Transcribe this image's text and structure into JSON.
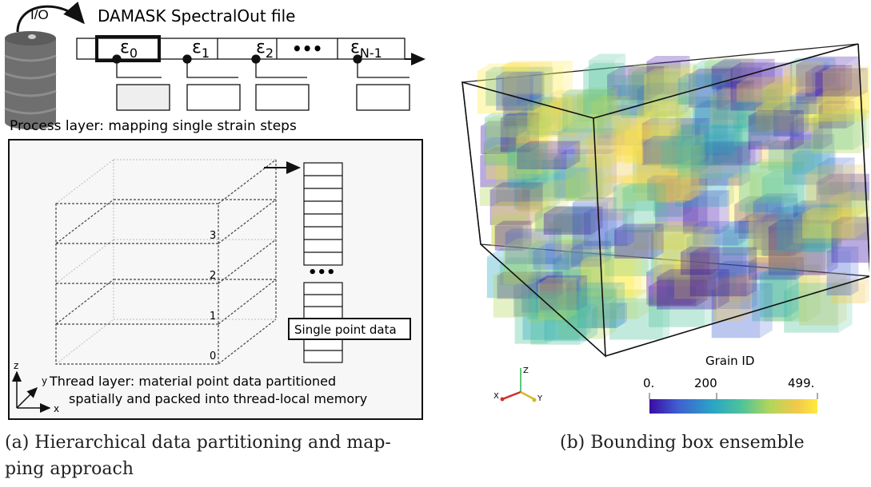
{
  "left_panel": {
    "io_label": "I/O",
    "file_title": "DAMASK SpectralOut file",
    "strain_cells": [
      {
        "base": "ε",
        "sub": "0",
        "highlighted": true
      },
      {
        "base": "ε",
        "sub": "1",
        "highlighted": false
      },
      {
        "base": "ε",
        "sub": "2",
        "highlighted": false
      },
      {
        "base": "•••",
        "sub": "",
        "highlighted": false
      },
      {
        "base": "ε",
        "sub": "N-1",
        "highlighted": false
      }
    ],
    "process_layer_label": "Process layer: mapping single strain steps",
    "layer_numbers": [
      "3",
      "2",
      "1",
      "0"
    ],
    "stack_ellipsis": "•••",
    "single_point_label": "Single point data",
    "thread_layer_line1": "Thread layer: material point data partitioned",
    "thread_layer_line2": "spatially and packed into thread-local memory",
    "axes": {
      "z": "z",
      "y": "y",
      "x": "x"
    },
    "caption_line1": "(a) Hierarchical data partitioning and map-",
    "caption_line2": "ping approach"
  },
  "right_panel": {
    "colorbar": {
      "title": "Grain ID",
      "tick_labels": [
        "0.",
        "200",
        "499."
      ],
      "colors": [
        "#3a0ca3",
        "#3f5fd0",
        "#2aa6c4",
        "#4fc39a",
        "#b3d65a",
        "#f2c94c",
        "#ffea3c"
      ]
    },
    "orientation_axes": {
      "z": "Z",
      "x": "X",
      "y": "Y"
    },
    "caption": "(b) Bounding box ensemble"
  }
}
